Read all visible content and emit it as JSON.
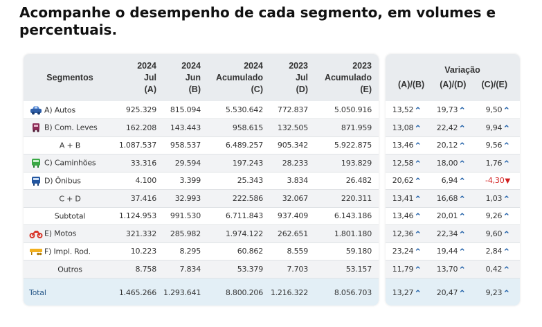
{
  "headline": "Acompanhe o desempenho de cada segmento, em volumes e percentuais.",
  "colors": {
    "header_bg": "#e9ecef",
    "alt_row": "#f2f3f5",
    "total_bg": "#e3eff6",
    "up_arrow": "#1f5fa8",
    "down_arrow": "#d21f1f"
  },
  "left": {
    "headers": [
      {
        "l1": "",
        "l2": "Segmentos",
        "l3": ""
      },
      {
        "l1": "2024",
        "l2": "Jul",
        "l3": "(A)"
      },
      {
        "l1": "2024",
        "l2": "Jun",
        "l3": "(B)"
      },
      {
        "l1": "2024",
        "l2": "Acumulado",
        "l3": "(C)"
      },
      {
        "l1": "2023",
        "l2": "Jul",
        "l3": "(D)"
      },
      {
        "l1": "2023",
        "l2": "Acumulado",
        "l3": "(E)"
      }
    ],
    "rows": [
      {
        "segment": "A) Autos",
        "icon": "car-icon",
        "a": "925.329",
        "b": "815.094",
        "c": "5.530.642",
        "d": "772.837",
        "e": "5.050.916"
      },
      {
        "segment": "B) Com. Leves",
        "icon": "light-truck-icon",
        "a": "162.208",
        "b": "143.443",
        "c": "958.615",
        "d": "132.505",
        "e": "871.959"
      },
      {
        "segment": "A + B",
        "icon": "",
        "a": "1.087.537",
        "b": "958.537",
        "c": "6.489.257",
        "d": "905.342",
        "e": "5.922.875"
      },
      {
        "segment": "C) Caminhões",
        "icon": "truck-icon",
        "a": "33.316",
        "b": "29.594",
        "c": "197.243",
        "d": "28.233",
        "e": "193.829"
      },
      {
        "segment": "D) Ônibus",
        "icon": "bus-icon",
        "a": "4.100",
        "b": "3.399",
        "c": "25.343",
        "d": "3.834",
        "e": "26.482"
      },
      {
        "segment": "C + D",
        "icon": "",
        "a": "37.416",
        "b": "32.993",
        "c": "222.586",
        "d": "32.067",
        "e": "220.311"
      },
      {
        "segment": "Subtotal",
        "icon": "",
        "a": "1.124.953",
        "b": "991.530",
        "c": "6.711.843",
        "d": "937.409",
        "e": "6.143.186"
      },
      {
        "segment": "E) Motos",
        "icon": "motorcycle-icon",
        "a": "321.332",
        "b": "285.982",
        "c": "1.974.122",
        "d": "262.651",
        "e": "1.801.180"
      },
      {
        "segment": "F) Impl. Rod.",
        "icon": "trailer-icon",
        "a": "10.223",
        "b": "8.295",
        "c": "60.862",
        "d": "8.559",
        "e": "59.180"
      },
      {
        "segment": "Outros",
        "icon": "",
        "a": "8.758",
        "b": "7.834",
        "c": "53.379",
        "d": "7.703",
        "e": "53.157"
      }
    ],
    "total": {
      "segment": "Total",
      "a": "1.465.266",
      "b": "1.293.641",
      "c": "8.800.206",
      "d": "1.216.322",
      "e": "8.056.703"
    }
  },
  "right": {
    "title": "Variação",
    "col_ab": "(A)/(B)",
    "col_ad": "(A)/(D)",
    "col_ce": "(C)/(E)",
    "rows": [
      {
        "ab": "13,52",
        "ad": "19,73",
        "ce": "9,50",
        "ab_dir": "up",
        "ad_dir": "up",
        "ce_dir": "up"
      },
      {
        "ab": "13,08",
        "ad": "22,42",
        "ce": "9,94",
        "ab_dir": "up",
        "ad_dir": "up",
        "ce_dir": "up"
      },
      {
        "ab": "13,46",
        "ad": "20,12",
        "ce": "9,56",
        "ab_dir": "up",
        "ad_dir": "up",
        "ce_dir": "up"
      },
      {
        "ab": "12,58",
        "ad": "18,00",
        "ce": "1,76",
        "ab_dir": "up",
        "ad_dir": "up",
        "ce_dir": "up"
      },
      {
        "ab": "20,62",
        "ad": "6,94",
        "ce": "-4,30",
        "ab_dir": "up",
        "ad_dir": "up",
        "ce_dir": "down"
      },
      {
        "ab": "13,41",
        "ad": "16,68",
        "ce": "1,03",
        "ab_dir": "up",
        "ad_dir": "up",
        "ce_dir": "up"
      },
      {
        "ab": "13,46",
        "ad": "20,01",
        "ce": "9,26",
        "ab_dir": "up",
        "ad_dir": "up",
        "ce_dir": "up"
      },
      {
        "ab": "12,36",
        "ad": "22,34",
        "ce": "9,60",
        "ab_dir": "up",
        "ad_dir": "up",
        "ce_dir": "up"
      },
      {
        "ab": "23,24",
        "ad": "19,44",
        "ce": "2,84",
        "ab_dir": "up",
        "ad_dir": "up",
        "ce_dir": "up"
      },
      {
        "ab": "11,79",
        "ad": "13,70",
        "ce": "0,42",
        "ab_dir": "up",
        "ad_dir": "up",
        "ce_dir": "up"
      }
    ],
    "total": {
      "ab": "13,27",
      "ad": "20,47",
      "ce": "9,23",
      "ab_dir": "up",
      "ad_dir": "up",
      "ce_dir": "up"
    }
  }
}
